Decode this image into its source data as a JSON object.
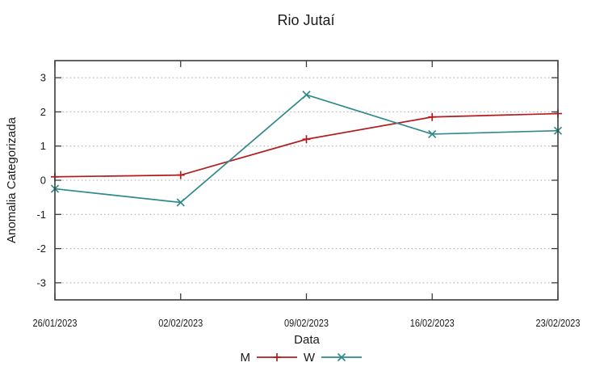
{
  "window": {
    "background": "#ffffff"
  },
  "chart_data": {
    "type": "line",
    "title": "Rio Jutaí",
    "xlabel": "Data",
    "ylabel": "Anomalia Categorizada",
    "categories": [
      "26/01/2023",
      "02/02/2023",
      "09/02/2023",
      "16/02/2023",
      "23/02/2023"
    ],
    "yticks": [
      -3,
      -2,
      -1,
      0,
      1,
      2,
      3
    ],
    "ylim": [
      -3.5,
      3.5
    ],
    "grid": "horizontal-dotted",
    "legend_position": "bottom-center",
    "series": [
      {
        "name": "M",
        "marker": "plus",
        "color": "#b41c1c",
        "values": [
          0.1,
          0.15,
          1.2,
          1.85,
          1.95
        ]
      },
      {
        "name": "W",
        "marker": "cross",
        "color": "#2f8a8a",
        "values": [
          -0.25,
          -0.65,
          2.5,
          1.35,
          1.45
        ]
      }
    ],
    "style": {
      "axis_color": "#3c3c3c",
      "grid_color": "#a6a6a6",
      "text_color": "#1a1a1a"
    }
  }
}
